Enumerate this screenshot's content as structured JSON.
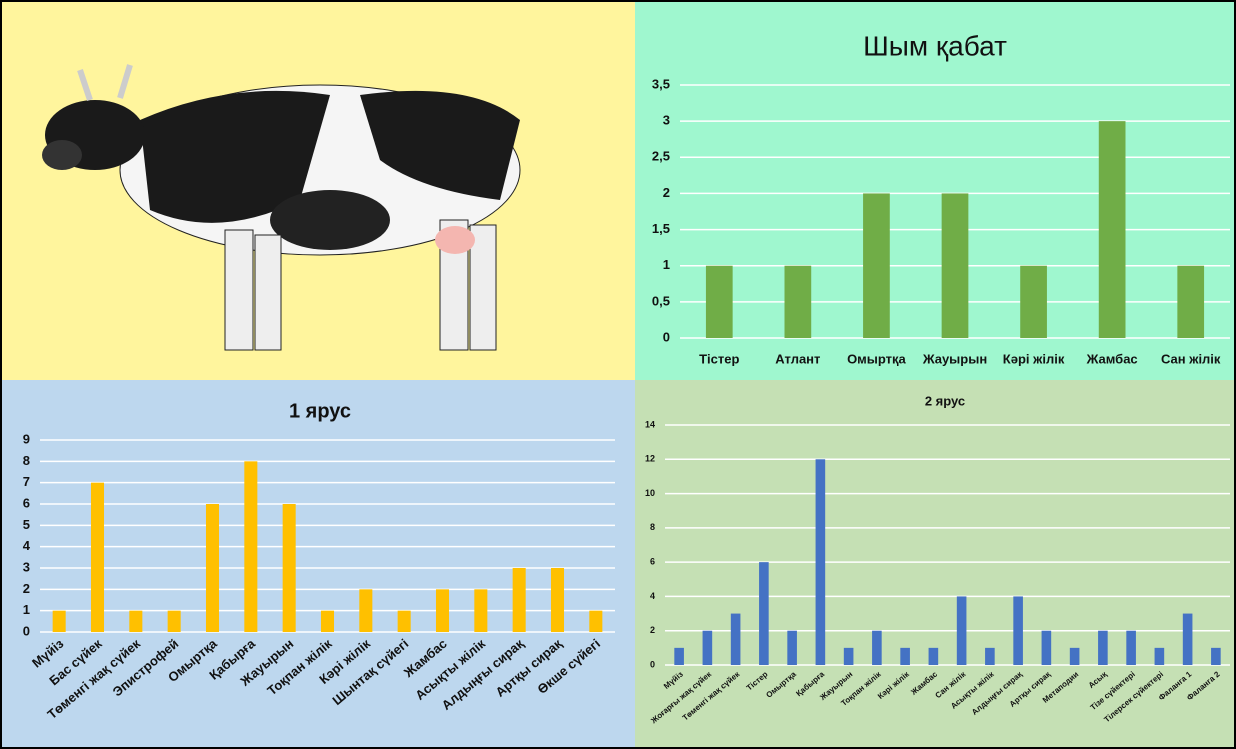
{
  "chart_data": [
    {
      "type": "bar",
      "title": "Шым қабат",
      "categories": [
        "Тістер",
        "Атлант",
        "Омыртқа",
        "Жауырын",
        "Кәрі жілік",
        "Жамбас",
        "Сан жілік"
      ],
      "values": [
        1,
        1,
        2,
        2,
        1,
        3,
        1
      ],
      "color": "#70ad47",
      "ylim": [
        0,
        3.5
      ],
      "yticks": [
        0,
        {
          "value": 0.5,
          "label": "0,5"
        },
        1,
        {
          "value": 1.5,
          "label": "1,5"
        },
        2,
        {
          "value": 2.5,
          "label": "2,5"
        },
        3,
        {
          "value": 3.5,
          "label": "3,5"
        }
      ],
      "grid": true
    },
    {
      "type": "bar",
      "title": "1 ярус",
      "categories": [
        "Мүйіз",
        "Бас сүйек",
        "Төменгі жақ сүйек",
        "Эпистрофей",
        "Омыртқа",
        "Қабырға",
        "Жауырын",
        "Тоқпан жілік",
        "Кәрі жілік",
        "Шынтақ сүйегі",
        "Жамбас",
        "Асықты жілік",
        "Алдыңғы сирақ",
        "Артқы сирақ",
        "Өкше сүйегі"
      ],
      "values": [
        1,
        7,
        1,
        1,
        6,
        8,
        6,
        1,
        2,
        1,
        2,
        2,
        3,
        3,
        1
      ],
      "color": "#ffc000",
      "ylim": [
        0,
        9
      ],
      "yticks": [
        0,
        1,
        2,
        3,
        4,
        5,
        6,
        7,
        8,
        9
      ],
      "grid": true
    },
    {
      "type": "bar",
      "title": "2 ярус",
      "categories": [
        "Мүйіз",
        "Жоғарғы жақ сүйек",
        "Төменгі жақ сүйек",
        "Тістер",
        "Омыртқа",
        "Қабырға",
        "Жауырын",
        "Тоқпан жілік",
        "Кәрі жілік",
        "Жамбас",
        "Сан жілік",
        "Асықты жілік",
        "Алдыңғы сирақ",
        "Артқы сирақ",
        "Метаподии",
        "Асық",
        "Тізе сүйектері",
        "Тілерсек сүйектері",
        "Фаланга 1",
        "Фаланга 2"
      ],
      "values": [
        1,
        2,
        3,
        6,
        2,
        12,
        1,
        2,
        1,
        1,
        4,
        1,
        4,
        2,
        1,
        2,
        2,
        1,
        3,
        1
      ],
      "color": "#4472c4",
      "ylim": [
        0,
        14
      ],
      "yticks": [
        0,
        2,
        4,
        6,
        8,
        10,
        12,
        14
      ],
      "grid": true
    }
  ]
}
